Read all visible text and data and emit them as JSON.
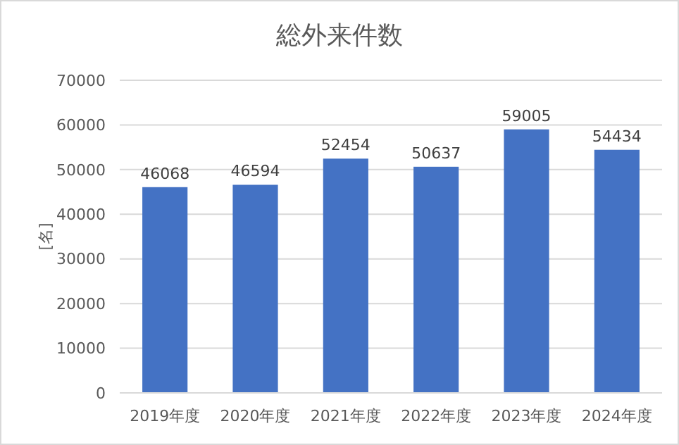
{
  "chart_data": {
    "type": "bar",
    "title": "総外来件数",
    "ylabel": "[名]",
    "categories": [
      "2019年度",
      "2020年度",
      "2021年度",
      "2022年度",
      "2023年度",
      "2024年度"
    ],
    "values": [
      46068,
      46594,
      52454,
      50637,
      59005,
      54434
    ],
    "color": "#4472c4",
    "ylim": [
      0,
      70000
    ],
    "yticks": [
      0,
      10000,
      20000,
      30000,
      40000,
      50000,
      60000,
      70000
    ],
    "grid": "y",
    "data_labels": true
  }
}
